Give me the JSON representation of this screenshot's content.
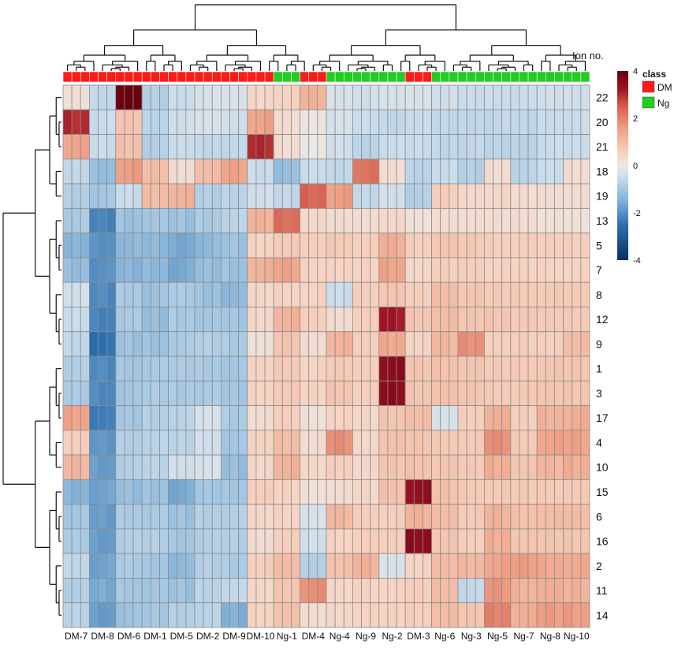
{
  "chart_data": {
    "type": "heatmap",
    "title": "",
    "row_header": "Ion no.",
    "legend": {
      "title": "class",
      "items": [
        {
          "name": "DM",
          "color": "#ff1a1a"
        },
        {
          "name": "Ng",
          "color": "#22cc22"
        }
      ]
    },
    "colorscale": {
      "min": -4,
      "max": 4,
      "ticks": [
        "4",
        "2",
        "0",
        "-2",
        "-4"
      ],
      "stops": [
        {
          "v": -4,
          "c": "#0d2f5f"
        },
        {
          "v": -2.5,
          "c": "#2c6fb0"
        },
        {
          "v": -1.5,
          "c": "#7fb0d8"
        },
        {
          "v": -0.5,
          "c": "#c9dceb"
        },
        {
          "v": 0,
          "c": "#ebe8e6"
        },
        {
          "v": 0.5,
          "c": "#f6d3c2"
        },
        {
          "v": 1.5,
          "c": "#f0a58a"
        },
        {
          "v": 2.5,
          "c": "#d95d4c"
        },
        {
          "v": 3.2,
          "c": "#a11526"
        },
        {
          "v": 4,
          "c": "#67000d"
        }
      ]
    },
    "rows": [
      "22",
      "20",
      "21",
      "18",
      "19",
      "13",
      "5",
      "7",
      "8",
      "12",
      "9",
      "1",
      "3",
      "17",
      "4",
      "10",
      "15",
      "6",
      "16",
      "2",
      "11",
      "14"
    ],
    "columns": [
      "DM-7",
      "DM-8",
      "DM-6",
      "DM-1",
      "DM-5",
      "DM-2",
      "DM-9",
      "DM-10",
      "Ng-1",
      "DM-4",
      "Ng-4",
      "Ng-9",
      "Ng-2",
      "DM-3",
      "Ng-6",
      "Ng-3",
      "Ng-5",
      "Ng-7",
      "Ng-8",
      "Ng-10"
    ],
    "column_class": [
      "DM",
      "DM",
      "DM",
      "DM",
      "DM",
      "DM",
      "DM",
      "DM",
      "Ng",
      "DM",
      "Ng",
      "Ng",
      "Ng",
      "DM",
      "Ng",
      "Ng",
      "Ng",
      "Ng",
      "Ng",
      "Ng"
    ],
    "subcolumns_per_column": 3,
    "values": [
      [
        0.2,
        -0.6,
        4.0,
        -0.8,
        -0.5,
        -0.3,
        -0.3,
        0.4,
        0.5,
        1.2,
        -0.3,
        -0.4,
        -0.3,
        -0.3,
        -0.4,
        -0.5,
        -0.5,
        -0.5,
        -0.4,
        -0.4
      ],
      [
        3.0,
        -0.5,
        0.8,
        -0.7,
        -0.4,
        -0.3,
        -0.4,
        1.5,
        0.3,
        0.1,
        -0.3,
        -0.5,
        -0.6,
        -0.5,
        -0.6,
        -0.6,
        -0.6,
        -0.6,
        -0.5,
        -0.5
      ],
      [
        1.5,
        -0.5,
        0.9,
        -0.8,
        -0.5,
        -0.6,
        -0.6,
        3.0,
        0.3,
        0.0,
        -0.4,
        -0.7,
        -0.5,
        -0.5,
        -0.6,
        -0.6,
        -0.7,
        -0.7,
        -0.5,
        -0.5
      ],
      [
        -0.6,
        -1.2,
        1.6,
        1.0,
        0.3,
        1.0,
        1.5,
        -0.5,
        -1.2,
        -0.5,
        -0.6,
        2.2,
        0.3,
        -0.7,
        -0.5,
        -0.8,
        0.3,
        -0.7,
        -0.5,
        0.3
      ],
      [
        -0.8,
        -1.0,
        -0.5,
        1.0,
        1.2,
        -0.8,
        -0.7,
        -0.4,
        -0.6,
        2.4,
        1.6,
        -0.6,
        -0.4,
        -0.8,
        0.6,
        0.4,
        0.4,
        0.3,
        0.3,
        0.3
      ],
      [
        -0.9,
        -2.2,
        -1.1,
        -1.0,
        -1.1,
        -0.9,
        -0.7,
        1.2,
        2.3,
        0.4,
        0.3,
        0.3,
        0.4,
        0.2,
        0.3,
        0.3,
        0.3,
        0.3,
        0.2,
        0.2
      ],
      [
        -1.4,
        -2.0,
        -1.3,
        -1.3,
        -1.6,
        -1.3,
        -1.1,
        0.5,
        0.7,
        0.6,
        0.7,
        0.6,
        1.3,
        0.6,
        0.8,
        0.7,
        0.6,
        0.6,
        0.6,
        0.6
      ],
      [
        -1.2,
        -2.0,
        -1.4,
        -1.3,
        -1.6,
        -1.2,
        -1.1,
        1.2,
        1.5,
        0.5,
        0.5,
        0.5,
        1.5,
        0.4,
        0.6,
        0.6,
        0.5,
        0.5,
        0.5,
        0.5
      ],
      [
        -0.4,
        -2.1,
        -0.9,
        -1.1,
        -0.9,
        -1.1,
        -1.3,
        0.4,
        0.5,
        0.5,
        -0.5,
        0.6,
        0.8,
        0.6,
        1.0,
        0.8,
        0.7,
        0.7,
        0.7,
        0.7
      ],
      [
        -0.5,
        -2.2,
        -0.9,
        -1.2,
        -0.9,
        -1.0,
        -1.0,
        0.4,
        1.2,
        0.6,
        0.3,
        0.6,
        3.2,
        0.8,
        1.0,
        0.8,
        0.8,
        0.7,
        0.7,
        0.7
      ],
      [
        -0.6,
        -2.5,
        -1.1,
        -1.1,
        -0.9,
        -0.8,
        -0.9,
        0.2,
        0.8,
        0.3,
        1.2,
        0.6,
        1.4,
        0.5,
        1.1,
        1.8,
        0.6,
        0.6,
        0.6,
        1.0
      ],
      [
        -0.8,
        -2.1,
        -1.0,
        -0.9,
        -0.9,
        -0.9,
        -1.0,
        0.5,
        0.7,
        0.5,
        0.7,
        0.6,
        3.5,
        0.8,
        0.9,
        0.8,
        0.7,
        0.7,
        0.8,
        0.8
      ],
      [
        -0.9,
        -2.1,
        -1.0,
        -0.9,
        -0.9,
        -0.9,
        -1.0,
        0.5,
        0.7,
        0.5,
        0.8,
        0.6,
        3.5,
        0.8,
        0.9,
        0.8,
        0.7,
        0.7,
        0.8,
        0.8
      ],
      [
        1.5,
        -2.3,
        -1.0,
        -0.8,
        -0.7,
        -0.3,
        -0.9,
        0.3,
        0.6,
        0.2,
        0.5,
        0.4,
        0.8,
        1.0,
        -0.3,
        0.6,
        1.3,
        0.6,
        1.2,
        1.3
      ],
      [
        0.6,
        -1.9,
        -0.8,
        -0.7,
        -0.7,
        -0.4,
        -1.0,
        0.5,
        1.0,
        0.3,
        1.8,
        0.4,
        0.9,
        0.8,
        0.7,
        0.7,
        1.8,
        0.7,
        1.5,
        1.5
      ],
      [
        1.1,
        -1.8,
        -0.8,
        -0.7,
        -0.4,
        -0.3,
        -1.2,
        0.4,
        1.2,
        0.4,
        0.6,
        0.4,
        0.8,
        0.9,
        0.8,
        0.7,
        1.3,
        0.8,
        1.1,
        1.3
      ],
      [
        -1.4,
        -1.7,
        -1.2,
        -1.1,
        -1.6,
        -1.0,
        -1.0,
        0.6,
        0.5,
        0.2,
        0.3,
        0.4,
        0.9,
        3.4,
        0.9,
        0.7,
        0.7,
        0.7,
        0.7,
        0.7
      ],
      [
        -1.0,
        -1.8,
        -0.9,
        -0.9,
        -1.1,
        -0.8,
        -0.8,
        0.4,
        0.5,
        -0.3,
        1.1,
        0.6,
        0.6,
        1.2,
        1.0,
        0.7,
        1.2,
        0.9,
        1.0,
        1.0
      ],
      [
        -0.9,
        -1.8,
        -0.8,
        -0.8,
        -1.0,
        -0.8,
        -0.8,
        0.3,
        0.6,
        -0.4,
        0.5,
        0.6,
        0.6,
        3.5,
        0.8,
        0.6,
        1.3,
        0.8,
        0.8,
        0.8
      ],
      [
        -0.6,
        -1.7,
        -0.9,
        -1.0,
        -1.3,
        -0.8,
        -0.9,
        0.6,
        1.0,
        -0.8,
        0.9,
        1.2,
        -0.3,
        0.5,
        1.0,
        1.1,
        1.5,
        1.6,
        1.4,
        1.4
      ],
      [
        -0.8,
        -1.6,
        -1.0,
        -1.0,
        -1.1,
        -0.7,
        -0.6,
        0.4,
        0.8,
        1.8,
        0.4,
        0.5,
        0.5,
        0.6,
        1.0,
        -0.6,
        1.7,
        1.2,
        1.3,
        1.2
      ],
      [
        -0.7,
        -1.8,
        -1.1,
        -1.0,
        -0.8,
        -0.7,
        -1.5,
        0.5,
        0.9,
        0.3,
        0.4,
        0.5,
        0.5,
        0.6,
        1.0,
        0.8,
        2.0,
        1.3,
        1.6,
        1.6
      ]
    ]
  }
}
